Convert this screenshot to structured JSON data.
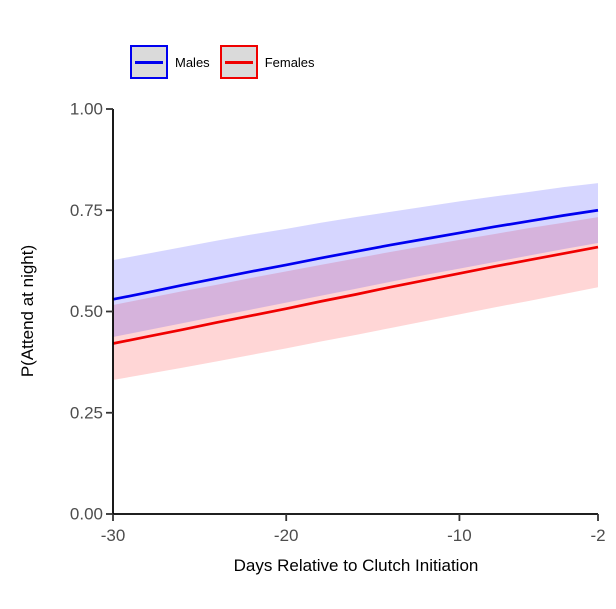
{
  "figure": {
    "background": "#ffffff",
    "axis_color": "#000000",
    "tick_color": "#333333",
    "tick_label_color": "#4D4D4D"
  },
  "legend": {
    "items": [
      {
        "label": "Males",
        "line_color": "#0000F0",
        "border_color": "#0000F0",
        "fill": "#DADADA"
      },
      {
        "label": "Females",
        "line_color": "#F00000",
        "border_color": "#F00000",
        "fill": "#DADADA"
      }
    ]
  },
  "chart_data": {
    "type": "line",
    "title": "",
    "xlabel": "Days Relative to Clutch Initiation",
    "ylabel": "P(Attend at night)",
    "xlim": [
      -30,
      -2
    ],
    "ylim": [
      0,
      1
    ],
    "grid": false,
    "legend_position": "top-left",
    "x_ticks": [
      -30,
      -20,
      -10,
      -2
    ],
    "x_tick_labels": [
      "-30",
      "-20",
      "-10",
      "-2"
    ],
    "y_ticks": [
      0,
      0.25,
      0.5,
      0.75,
      1
    ],
    "y_tick_labels": [
      "0.00",
      "0.25",
      "0.50",
      "0.75",
      "1.00"
    ],
    "x": [
      -30,
      -28,
      -26,
      -24,
      -22,
      -20,
      -18,
      -16,
      -14,
      -12,
      -10,
      -8,
      -6,
      -4,
      -2
    ],
    "series": [
      {
        "name": "Males",
        "color": "#0000F0",
        "band_color": "#0000FF",
        "band_opacity": 0.16,
        "values": [
          0.53,
          0.547,
          0.565,
          0.582,
          0.599,
          0.615,
          0.632,
          0.648,
          0.664,
          0.679,
          0.694,
          0.709,
          0.723,
          0.737,
          0.75
        ],
        "upper": [
          0.627,
          0.643,
          0.659,
          0.675,
          0.69,
          0.704,
          0.719,
          0.733,
          0.746,
          0.759,
          0.772,
          0.784,
          0.795,
          0.807,
          0.817
        ],
        "lower": [
          0.437,
          0.454,
          0.471,
          0.488,
          0.505,
          0.522,
          0.539,
          0.556,
          0.573,
          0.59,
          0.606,
          0.622,
          0.638,
          0.654,
          0.669
        ]
      },
      {
        "name": "Females",
        "color": "#F00000",
        "band_color": "#FF0000",
        "band_opacity": 0.16,
        "values": [
          0.421,
          0.438,
          0.455,
          0.473,
          0.49,
          0.507,
          0.525,
          0.542,
          0.56,
          0.577,
          0.594,
          0.611,
          0.627,
          0.643,
          0.659
        ],
        "upper": [
          0.516,
          0.533,
          0.55,
          0.566,
          0.583,
          0.599,
          0.615,
          0.631,
          0.647,
          0.662,
          0.677,
          0.691,
          0.706,
          0.719,
          0.733
        ],
        "lower": [
          0.331,
          0.346,
          0.361,
          0.377,
          0.393,
          0.409,
          0.426,
          0.442,
          0.459,
          0.476,
          0.493,
          0.51,
          0.526,
          0.543,
          0.56
        ]
      }
    ]
  }
}
